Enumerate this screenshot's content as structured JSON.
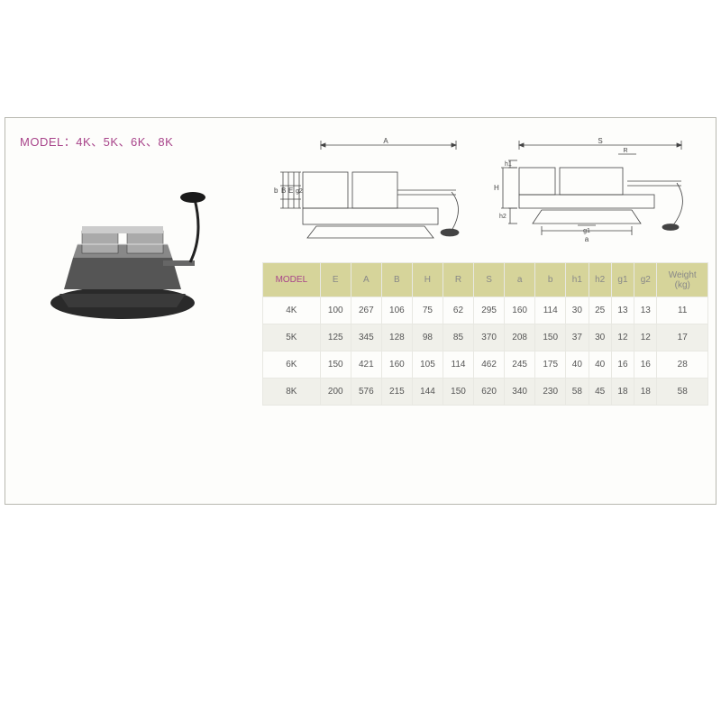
{
  "title": "MODEL：4K、5K、6K、8K",
  "table": {
    "columns": [
      "MODEL",
      "E",
      "A",
      "B",
      "H",
      "R",
      "S",
      "a",
      "b",
      "h1",
      "h2",
      "g1",
      "g2",
      "Weight (kg)"
    ],
    "rows": [
      [
        "4K",
        "100",
        "267",
        "106",
        "75",
        "62",
        "295",
        "160",
        "114",
        "30",
        "25",
        "13",
        "13",
        "11"
      ],
      [
        "5K",
        "125",
        "345",
        "128",
        "98",
        "85",
        "370",
        "208",
        "150",
        "37",
        "30",
        "12",
        "12",
        "17"
      ],
      [
        "6K",
        "150",
        "421",
        "160",
        "105",
        "114",
        "462",
        "245",
        "175",
        "40",
        "40",
        "16",
        "16",
        "28"
      ],
      [
        "8K",
        "200",
        "576",
        "215",
        "144",
        "150",
        "620",
        "340",
        "230",
        "58",
        "45",
        "18",
        "18",
        "58"
      ]
    ],
    "header_bg": "#d6d49a",
    "model_header_color": "#a8448a",
    "alt_row_bg": "#f0f0ea"
  },
  "diagram": {
    "labels_left": [
      "b",
      "B",
      "E",
      "g2",
      "A"
    ],
    "labels_right": [
      "H",
      "h1",
      "h2",
      "R",
      "S",
      "g1",
      "a"
    ]
  },
  "colors": {
    "title": "#a8448a",
    "sheet_bg": "#fdfdfb",
    "border": "#b8b8b0"
  }
}
